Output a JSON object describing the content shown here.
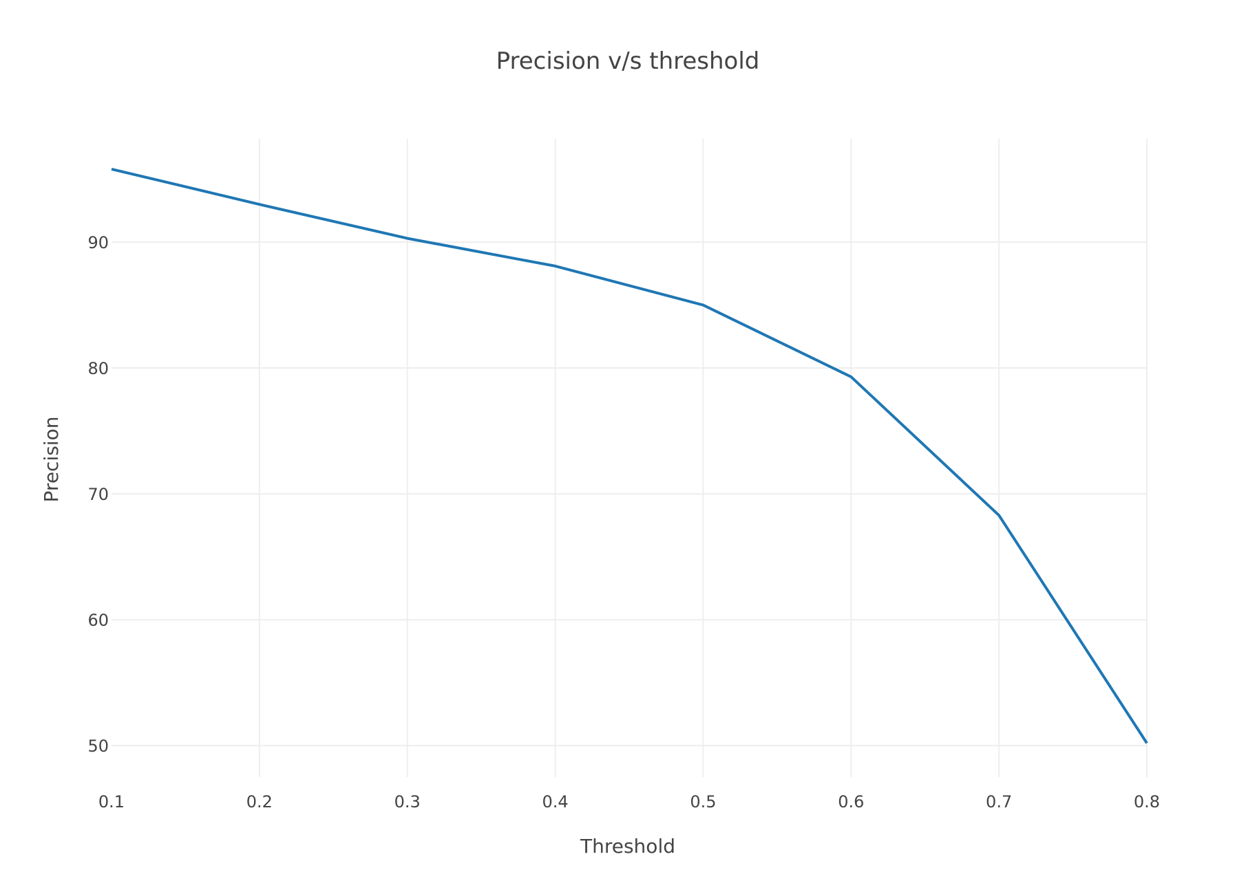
{
  "chart_data": {
    "type": "line",
    "title": "Precision v/s threshold",
    "xlabel": "Threshold",
    "ylabel": "Precision",
    "x": [
      0.1,
      0.2,
      0.3,
      0.4,
      0.5,
      0.6,
      0.7,
      0.8
    ],
    "series": [
      {
        "values": [
          95.8,
          93.0,
          90.3,
          88.1,
          85.0,
          79.3,
          68.3,
          50.2
        ],
        "color": "#1f77b4"
      }
    ],
    "xlim": [
      0.1,
      0.8
    ],
    "ylim": [
      47.5,
      98.2
    ],
    "xticks": [
      "0.1",
      "0.2",
      "0.3",
      "0.4",
      "0.5",
      "0.6",
      "0.7",
      "0.8"
    ],
    "yticks": [
      "50",
      "60",
      "70",
      "80",
      "90"
    ],
    "grid": true,
    "legend": "none"
  }
}
